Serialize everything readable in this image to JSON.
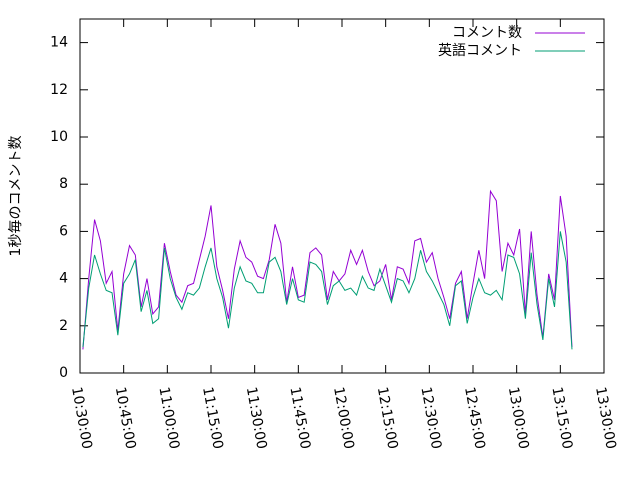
{
  "chart_data": {
    "type": "line",
    "y_label": "1秒毎のコメント数",
    "x": [
      "10:31:00",
      "10:33:00",
      "10:35:00",
      "10:37:00",
      "10:39:00",
      "10:41:00",
      "10:43:00",
      "10:45:00",
      "10:47:00",
      "10:49:00",
      "10:51:00",
      "10:53:00",
      "10:55:00",
      "10:57:00",
      "10:59:00",
      "11:01:00",
      "11:03:00",
      "11:05:00",
      "11:07:00",
      "11:09:00",
      "11:11:00",
      "11:13:00",
      "11:15:00",
      "11:17:00",
      "11:19:00",
      "11:21:00",
      "11:23:00",
      "11:25:00",
      "11:27:00",
      "11:29:00",
      "11:31:00",
      "11:33:00",
      "11:35:00",
      "11:37:00",
      "11:39:00",
      "11:41:00",
      "11:43:00",
      "11:45:00",
      "11:47:00",
      "11:49:00",
      "11:51:00",
      "11:53:00",
      "11:55:00",
      "11:57:00",
      "11:59:00",
      "12:01:00",
      "12:03:00",
      "12:05:00",
      "12:07:00",
      "12:09:00",
      "12:11:00",
      "12:13:00",
      "12:15:00",
      "12:17:00",
      "12:19:00",
      "12:21:00",
      "12:23:00",
      "12:25:00",
      "12:27:00",
      "12:29:00",
      "12:31:00",
      "12:33:00",
      "12:35:00",
      "12:37:00",
      "12:39:00",
      "12:41:00",
      "12:43:00",
      "12:45:00",
      "12:47:00",
      "12:49:00",
      "12:51:00",
      "12:53:00",
      "12:55:00",
      "12:57:00",
      "12:59:00",
      "13:01:00",
      "13:03:00",
      "13:05:00",
      "13:07:00",
      "13:09:00",
      "13:11:00",
      "13:13:00",
      "13:15:00",
      "13:17:00",
      "13:19:00"
    ],
    "series": [
      {
        "name": "コメント数",
        "color": "#9400d3",
        "values": [
          1.0,
          4.0,
          6.5,
          5.6,
          3.8,
          4.3,
          1.8,
          4.2,
          5.4,
          5.0,
          2.8,
          4.0,
          2.5,
          2.8,
          5.5,
          4.3,
          3.3,
          3.0,
          3.7,
          3.8,
          4.8,
          5.8,
          7.1,
          4.5,
          3.5,
          2.3,
          4.4,
          5.6,
          4.9,
          4.7,
          4.1,
          4.0,
          4.8,
          6.3,
          5.5,
          3.0,
          4.5,
          3.2,
          3.3,
          5.1,
          5.3,
          5.0,
          3.1,
          4.3,
          3.9,
          4.2,
          5.2,
          4.6,
          5.2,
          4.3,
          3.7,
          3.9,
          4.6,
          3.1,
          4.5,
          4.4,
          3.8,
          5.6,
          5.7,
          4.7,
          5.1,
          4.0,
          3.2,
          2.3,
          3.8,
          4.3,
          2.3,
          3.8,
          5.2,
          4.0,
          7.7,
          7.3,
          4.3,
          5.5,
          5.0,
          6.1,
          2.5,
          6.0,
          3.3,
          1.5,
          4.2,
          3.1,
          7.5,
          5.8,
          1.1
        ]
      },
      {
        "name": "英語コメント",
        "color": "#009e73",
        "values": [
          1.1,
          3.6,
          5.0,
          4.2,
          3.5,
          3.4,
          1.6,
          3.8,
          4.2,
          4.8,
          2.6,
          3.5,
          2.1,
          2.3,
          5.3,
          4.0,
          3.2,
          2.7,
          3.4,
          3.3,
          3.6,
          4.5,
          5.3,
          4.0,
          3.2,
          1.9,
          3.6,
          4.5,
          3.9,
          3.8,
          3.4,
          3.4,
          4.7,
          4.9,
          4.3,
          2.9,
          4.0,
          3.1,
          3.0,
          4.7,
          4.6,
          4.3,
          2.9,
          3.7,
          3.9,
          3.5,
          3.6,
          3.3,
          4.1,
          3.6,
          3.5,
          4.4,
          3.7,
          3.0,
          4.0,
          3.9,
          3.4,
          4.0,
          5.2,
          4.3,
          3.9,
          3.4,
          2.9,
          2.0,
          3.7,
          3.9,
          2.1,
          3.2,
          4.0,
          3.4,
          3.3,
          3.5,
          3.1,
          5.0,
          4.9,
          4.2,
          2.3,
          5.1,
          2.9,
          1.4,
          4.0,
          2.8,
          6.0,
          4.7,
          1.0
        ]
      }
    ],
    "xlim": [
      "10:30:00",
      "13:30:00"
    ],
    "xticks": [
      "10:30:00",
      "10:45:00",
      "11:00:00",
      "11:15:00",
      "11:30:00",
      "11:45:00",
      "12:00:00",
      "12:15:00",
      "12:30:00",
      "12:45:00",
      "13:00:00",
      "13:15:00",
      "13:30:00"
    ],
    "ylim": [
      0,
      15
    ],
    "yticks": [
      0,
      2,
      4,
      6,
      8,
      10,
      12,
      14
    ],
    "legend": "top-right"
  }
}
